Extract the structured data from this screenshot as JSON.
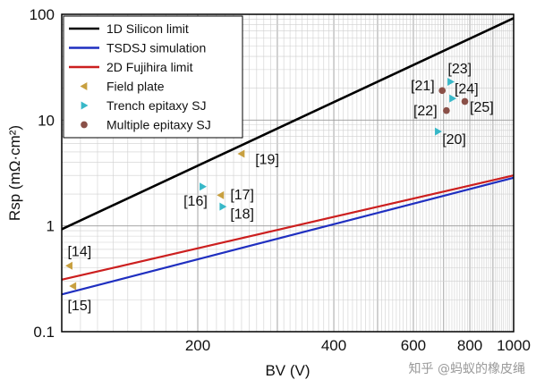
{
  "chart_data": {
    "type": "line",
    "xlabel": "BV (V)",
    "ylabel": "Rsp (mΩ·cm²)",
    "xscale": "log",
    "yscale": "log",
    "xlim": [
      100,
      1000
    ],
    "ylim": [
      0.1,
      100
    ],
    "grid": true,
    "legend_position": "top-left",
    "x_tick_labels": [
      {
        "value": 200,
        "label": "200"
      },
      {
        "value": 400,
        "label": "400"
      },
      {
        "value": 600,
        "label": "600"
      },
      {
        "value": 800,
        "label": "800"
      },
      {
        "value": 1000,
        "label": "1000"
      }
    ],
    "y_tick_labels": [
      {
        "value": 0.1,
        "label": "0.1"
      },
      {
        "value": 1,
        "label": "1"
      },
      {
        "value": 10,
        "label": "10"
      },
      {
        "value": 100,
        "label": "100"
      }
    ],
    "series": [
      {
        "name": "1D Silicon limit",
        "kind": "line",
        "color": "#000000",
        "x": [
          100,
          1000
        ],
        "y": [
          0.93,
          92
        ]
      },
      {
        "name": "TSDSJ simulation",
        "kind": "line",
        "color": "#1f2fc0",
        "x": [
          100,
          1000
        ],
        "y": [
          0.225,
          2.85
        ]
      },
      {
        "name": "2D Fujihira limit",
        "kind": "line",
        "color": "#cc1f1f",
        "x": [
          100,
          1000
        ],
        "y": [
          0.31,
          3.0
        ]
      },
      {
        "name": "Field plate",
        "kind": "marker",
        "marker": "triangle-left",
        "color": "#c8a040",
        "x": [
          104,
          106,
          225,
          250
        ],
        "y": [
          0.42,
          0.27,
          1.95,
          4.8
        ]
      },
      {
        "name": "Trench epitaxy SJ",
        "kind": "marker",
        "marker": "triangle-right",
        "color": "#38b8c8",
        "x": [
          205,
          227,
          680,
          725,
          732
        ],
        "y": [
          2.35,
          1.52,
          7.8,
          23,
          16
        ]
      },
      {
        "name": "Multiple epitaxy SJ",
        "kind": "marker",
        "marker": "circle",
        "color": "#8a5048",
        "x": [
          695,
          710,
          780
        ],
        "y": [
          19,
          12.3,
          15
        ]
      }
    ],
    "annotations": [
      {
        "text": "[14]",
        "x": 103,
        "y": 0.58
      },
      {
        "text": "[15]",
        "x": 103,
        "y": 0.18
      },
      {
        "text": "[16]",
        "x": 186,
        "y": 1.75
      },
      {
        "text": "[17]",
        "x": 236,
        "y": 2.0
      },
      {
        "text": "[18]",
        "x": 236,
        "y": 1.32
      },
      {
        "text": "[19]",
        "x": 268,
        "y": 4.3
      },
      {
        "text": "[20]",
        "x": 695,
        "y": 6.7
      },
      {
        "text": "[21]",
        "x": 592,
        "y": 21.5
      },
      {
        "text": "[22]",
        "x": 600,
        "y": 12.5
      },
      {
        "text": "[23]",
        "x": 715,
        "y": 31
      },
      {
        "text": "[24]",
        "x": 740,
        "y": 20
      },
      {
        "text": "[25]",
        "x": 800,
        "y": 13.5
      }
    ]
  },
  "watermark": "知乎 @蚂蚁的橡皮绳"
}
